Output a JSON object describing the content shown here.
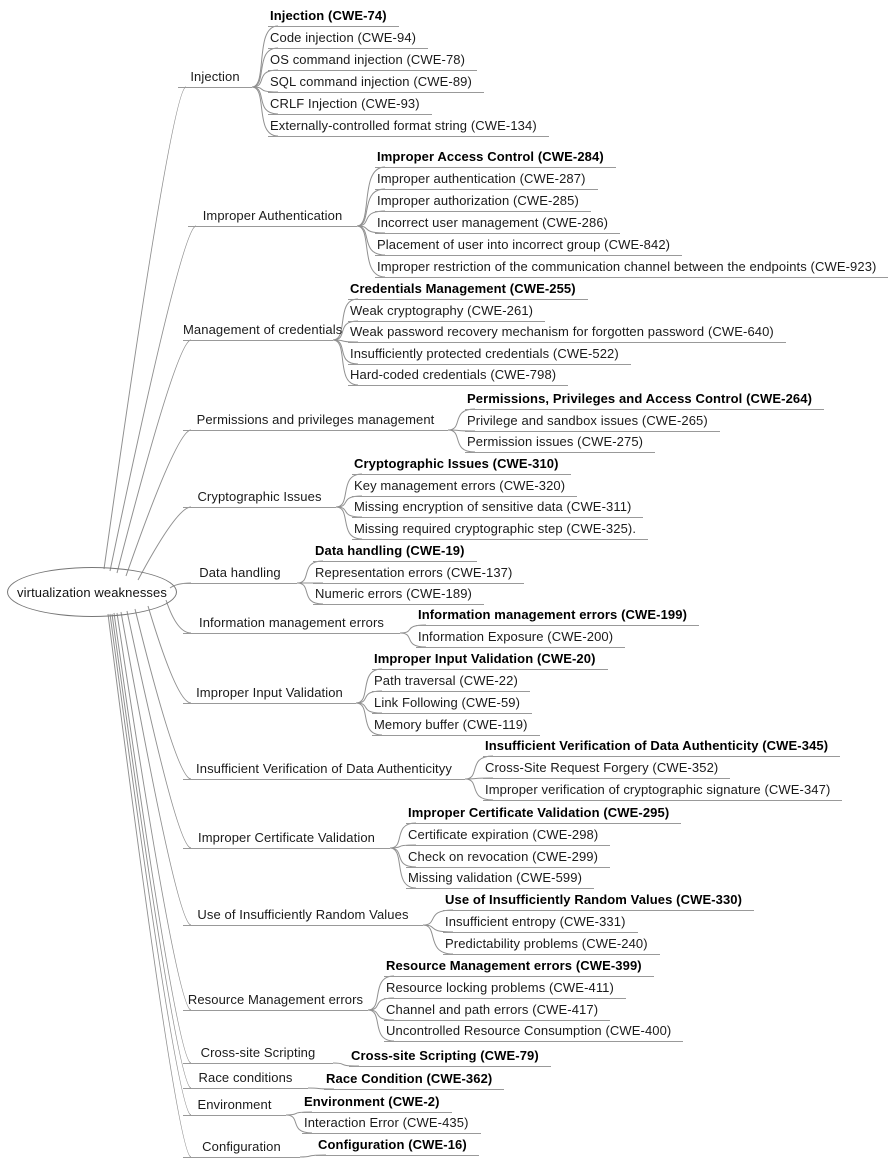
{
  "root": {
    "label": "virtualization weaknesses"
  },
  "branches": [
    {
      "label": "Injection",
      "children": [
        {
          "label": "Injection (CWE-74)",
          "bold": true
        },
        {
          "label": "Code injection (CWE-94)"
        },
        {
          "label": "OS command injection (CWE-78)"
        },
        {
          "label": "SQL command injection (CWE-89)"
        },
        {
          "label": "CRLF Injection (CWE-93)"
        },
        {
          "label": "Externally-controlled format string (CWE-134)"
        }
      ]
    },
    {
      "label": "Improper Authentication",
      "children": [
        {
          "label": "Improper Access Control (CWE-284)",
          "bold": true
        },
        {
          "label": "Improper authentication (CWE-287)"
        },
        {
          "label": "Improper authorization (CWE-285)"
        },
        {
          "label": "Incorrect user management (CWE-286)"
        },
        {
          "label": "Placement of user into incorrect group (CWE-842)"
        },
        {
          "label": "Improper restriction of the communication channel between the endpoints (CWE-923)"
        }
      ]
    },
    {
      "label": "Management of credentials",
      "children": [
        {
          "label": "Credentials Management (CWE-255)",
          "bold": true
        },
        {
          "label": "Weak cryptography (CWE-261)"
        },
        {
          "label": "Weak password recovery mechanism for forgotten password (CWE-640)"
        },
        {
          "label": "Insufficiently protected credentials (CWE-522)"
        },
        {
          "label": "Hard-coded credentials (CWE-798)"
        }
      ]
    },
    {
      "label": "Permissions and privileges management",
      "children": [
        {
          "label": "Permissions, Privileges and Access Control (CWE-264)",
          "bold": true
        },
        {
          "label": "Privilege and sandbox issues (CWE-265)"
        },
        {
          "label": "Permission issues (CWE-275)"
        }
      ]
    },
    {
      "label": "Cryptographic Issues",
      "children": [
        {
          "label": "Cryptographic Issues (CWE-310)",
          "bold": true
        },
        {
          "label": "Key management errors (CWE-320)"
        },
        {
          "label": "Missing encryption of sensitive data (CWE-311)"
        },
        {
          "label": "Missing required cryptographic step (CWE-325)."
        }
      ]
    },
    {
      "label": "Data handling",
      "children": [
        {
          "label": "Data handling (CWE-19)",
          "bold": true
        },
        {
          "label": "Representation errors (CWE-137)"
        },
        {
          "label": "Numeric errors (CWE-189)"
        }
      ]
    },
    {
      "label": "Information management errors",
      "children": [
        {
          "label": "Information management errors (CWE-199)",
          "bold": true
        },
        {
          "label": "Information Exposure (CWE-200)"
        }
      ]
    },
    {
      "label": "Improper Input Validation",
      "children": [
        {
          "label": "Improper Input Validation (CWE-20)",
          "bold": true
        },
        {
          "label": "Path traversal (CWE-22)"
        },
        {
          "label": "Link Following (CWE-59)"
        },
        {
          "label": "Memory buffer (CWE-119)"
        }
      ]
    },
    {
      "label": "Insufficient Verification of Data Authenticityy",
      "children": [
        {
          "label": "Insufficient Verification of Data Authenticity (CWE-345)",
          "bold": true
        },
        {
          "label": "Cross-Site Request Forgery (CWE-352)"
        },
        {
          "label": "Improper verification of cryptographic signature (CWE-347)"
        }
      ]
    },
    {
      "label": "Improper Certificate Validation",
      "children": [
        {
          "label": "Improper Certificate Validation (CWE-295)",
          "bold": true
        },
        {
          "label": "Certificate expiration (CWE-298)"
        },
        {
          "label": "Check on revocation (CWE-299)"
        },
        {
          "label": "Missing validation (CWE-599)"
        }
      ]
    },
    {
      "label": "Use of Insufficiently Random Values",
      "children": [
        {
          "label": "Use of Insufficiently Random Values (CWE-330)",
          "bold": true
        },
        {
          "label": "Insufficient entropy (CWE-331)"
        },
        {
          "label": "Predictability problems (CWE-240)"
        }
      ]
    },
    {
      "label": "Resource Management errors",
      "children": [
        {
          "label": "Resource Management errors (CWE-399)",
          "bold": true
        },
        {
          "label": "Resource locking problems (CWE-411)"
        },
        {
          "label": "Channel and path errors (CWE-417)"
        },
        {
          "label": "Uncontrolled Resource Consumption (CWE-400)"
        }
      ]
    },
    {
      "label": "Cross-site Scripting",
      "children": [
        {
          "label": "Cross-site Scripting (CWE-79)",
          "bold": true
        }
      ]
    },
    {
      "label": "Race conditions",
      "children": [
        {
          "label": "Race Condition (CWE-362)",
          "bold": true
        }
      ]
    },
    {
      "label": "Environment",
      "children": [
        {
          "label": "Environment (CWE-2)",
          "bold": true
        },
        {
          "label": "Interaction Error (CWE-435)"
        }
      ]
    },
    {
      "label": "Configuration",
      "children": [
        {
          "label": "Configuration (CWE-16)",
          "bold": true
        }
      ]
    }
  ]
}
